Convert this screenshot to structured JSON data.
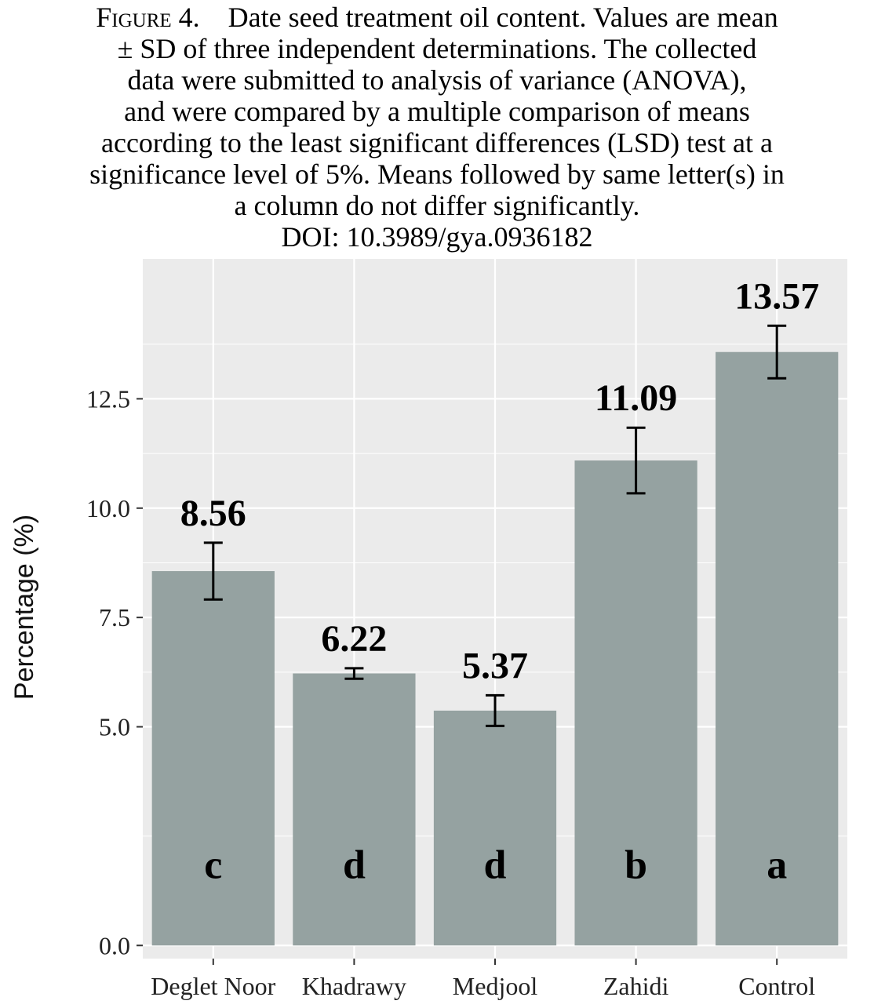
{
  "caption": {
    "label": "Figure 4.",
    "lines": [
      "Date seed treatment oil content. Values are mean",
      "± SD of three independent determinations. The collected",
      "data were submitted to analysis of variance (ANOVA),",
      "and were compared by a multiple comparison of means",
      "according to the least significant differences (LSD) test at a",
      "significance level of 5%. Means followed by same letter(s) in",
      "a column do not differ significantly."
    ],
    "doi": "DOI: 10.3989/gya.0936182"
  },
  "chart_data": {
    "type": "bar",
    "categories": [
      "Deglet Noor",
      "Khadrawy",
      "Medjool",
      "Zahidi",
      "Control"
    ],
    "values": [
      8.56,
      6.22,
      5.37,
      11.09,
      13.57
    ],
    "value_labels": [
      "8.56",
      "6.22",
      "5.37",
      "11.09",
      "13.57"
    ],
    "error_sd": [
      0.65,
      0.12,
      0.35,
      0.75,
      0.6
    ],
    "letters": [
      "c",
      "d",
      "d",
      "b",
      "a"
    ],
    "title": "",
    "xlabel": "",
    "ylabel": "Percentage (%)",
    "ylim": [
      -0.3,
      15.7
    ],
    "yticks": [
      0.0,
      5.0,
      7.5,
      10.0,
      12.5
    ],
    "ytick_labels": [
      "0.0",
      "5.0",
      "7.5",
      "10.0",
      "12.5"
    ],
    "grid": true,
    "colors": {
      "panel": "#ebebeb",
      "grid": "#ffffff",
      "bar": "#95a2a1"
    }
  }
}
